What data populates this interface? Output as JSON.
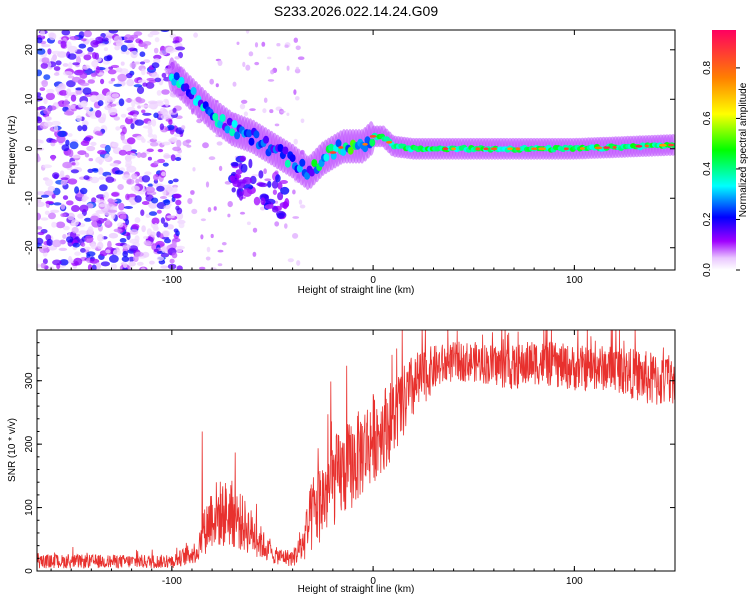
{
  "figure": {
    "title": "S233.2026.022.14.24.G09"
  },
  "chart_data": [
    {
      "type": "heatmap",
      "name": "spectrogram",
      "xlabel": "Height of straight line (km)",
      "ylabel": "Frequency (Hz)",
      "xlim": [
        -167,
        150
      ],
      "ylim": [
        -24.5,
        24
      ],
      "xticks": [
        -100,
        0,
        100
      ],
      "yticks": [
        -20,
        -10,
        0,
        10,
        20
      ],
      "colorbar": {
        "label": "Normalized spectral amplitude",
        "range": [
          0,
          0.95
        ],
        "ticks": [
          0.0,
          0.2,
          0.4,
          0.6,
          0.8
        ]
      },
      "ridge": {
        "description_points_km": [
          -100,
          -90,
          -80,
          -70,
          -60,
          -50,
          -40,
          -32,
          -25,
          -15,
          -5,
          0,
          5,
          10,
          20,
          40,
          60,
          80,
          100,
          120,
          150
        ],
        "frequency_hz": [
          15,
          11,
          7,
          4,
          2.5,
          0,
          -2.5,
          -5,
          -2,
          0.5,
          0.5,
          2.5,
          2.5,
          0.5,
          0,
          0,
          0,
          0,
          0,
          0.3,
          0.8
        ]
      }
    },
    {
      "type": "line",
      "name": "snr",
      "xlabel": "Height of straight line (km)",
      "ylabel": "SNR (10 * v/v)",
      "xlim": [
        -167,
        150
      ],
      "ylim": [
        0,
        380
      ],
      "xticks": [
        -100,
        0,
        100
      ],
      "yticks": [
        0,
        100,
        200,
        300
      ],
      "color": "#e8312e",
      "envelope": {
        "x_km": [
          -167,
          -100,
          -88,
          -80,
          -70,
          -60,
          -50,
          -40,
          -35,
          -30,
          -20,
          -10,
          0,
          10,
          20,
          30,
          40,
          50,
          70,
          80,
          100,
          120,
          140,
          150
        ],
        "y_mean": [
          15,
          15,
          30,
          90,
          90,
          60,
          25,
          20,
          40,
          90,
          140,
          170,
          210,
          240,
          290,
          320,
          330,
          330,
          320,
          330,
          320,
          320,
          300,
          300
        ],
        "y_spread": [
          12,
          12,
          20,
          60,
          60,
          40,
          15,
          15,
          30,
          70,
          80,
          80,
          80,
          70,
          60,
          40,
          35,
          35,
          40,
          40,
          40,
          40,
          50,
          40
        ]
      }
    }
  ]
}
